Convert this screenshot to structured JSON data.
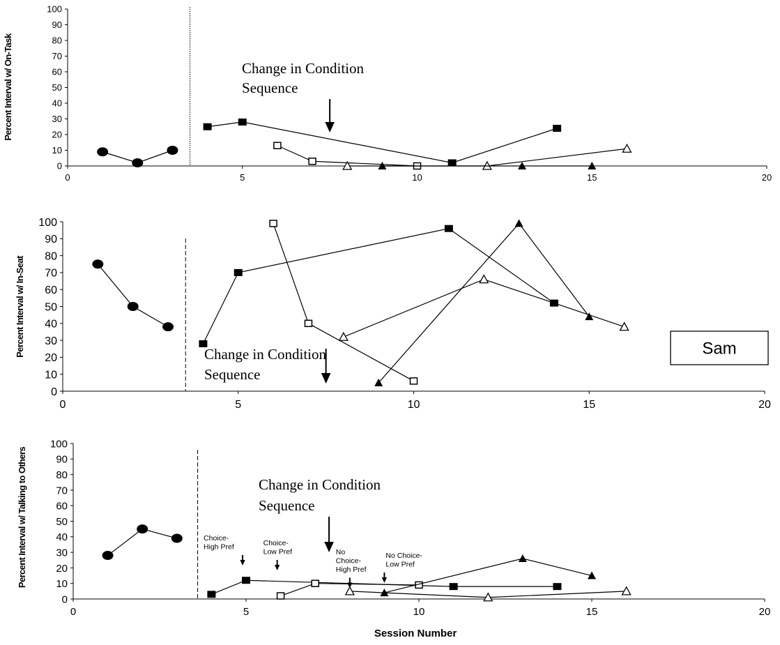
{
  "chart_data": [
    {
      "type": "line",
      "ylabel": "Percent Interval w/ On-Task",
      "xlabel": "",
      "xlim": [
        0,
        20
      ],
      "ylim": [
        0,
        100
      ],
      "x_ticks": [
        "0",
        "5",
        "10",
        "15",
        "20"
      ],
      "y_ticks": [
        "0",
        "10",
        "20",
        "30",
        "40",
        "50",
        "60",
        "70",
        "80",
        "90",
        "100"
      ],
      "phase_line_x": 3.5,
      "phase_line_style": "dotted",
      "annotation": {
        "text_lines": [
          "Change in Condition",
          "Sequence"
        ],
        "arrow_x": 7.5
      },
      "series": [
        {
          "marker": "filled-circle",
          "x": [
            1,
            2,
            3
          ],
          "y": [
            9,
            2,
            10
          ]
        },
        {
          "marker": "filled-square",
          "x": [
            4,
            5,
            11,
            14
          ],
          "y": [
            25,
            28,
            2,
            24
          ]
        },
        {
          "marker": "open-square",
          "x": [
            6,
            7,
            10
          ],
          "y": [
            13,
            3,
            0
          ]
        },
        {
          "marker": "open-triangle",
          "x": [
            8,
            12,
            16
          ],
          "y": [
            0,
            0,
            11
          ]
        },
        {
          "marker": "filled-triangle",
          "x": [
            9,
            13,
            15
          ],
          "y": [
            0,
            0,
            0
          ]
        }
      ]
    },
    {
      "type": "line",
      "ylabel": "Percent Interval w/ In-Seat",
      "xlabel": "",
      "xlim": [
        0,
        20
      ],
      "ylim": [
        0,
        100
      ],
      "x_ticks": [
        "0",
        "5",
        "10",
        "15",
        "20"
      ],
      "y_ticks": [
        "0",
        "10",
        "20",
        "30",
        "40",
        "50",
        "60",
        "70",
        "80",
        "90",
        "100"
      ],
      "phase_line_x": 3.5,
      "phase_line_style": "dashed",
      "annotation": {
        "text_lines": [
          "Change in Condition",
          "Sequence"
        ],
        "arrow_x": 7.5
      },
      "label_box": "Sam",
      "series": [
        {
          "marker": "filled-circle",
          "x": [
            1,
            2,
            3
          ],
          "y": [
            75,
            50,
            38
          ]
        },
        {
          "marker": "filled-square",
          "x": [
            4,
            5,
            11,
            14
          ],
          "y": [
            28,
            70,
            96,
            52
          ]
        },
        {
          "marker": "open-square",
          "x": [
            6,
            7,
            10
          ],
          "y": [
            99,
            40,
            6
          ]
        },
        {
          "marker": "open-triangle",
          "x": [
            8,
            12,
            16
          ],
          "y": [
            32,
            66,
            38
          ]
        },
        {
          "marker": "filled-triangle",
          "x": [
            9,
            13,
            15
          ],
          "y": [
            5,
            99,
            44
          ]
        }
      ]
    },
    {
      "type": "line",
      "ylabel": "Percent Interval w/ Talking to Others",
      "xlabel": "Session Number",
      "xlim": [
        0,
        20
      ],
      "ylim": [
        0,
        100
      ],
      "x_ticks": [
        "0",
        "5",
        "10",
        "15",
        "20"
      ],
      "y_ticks": [
        "0",
        "10",
        "20",
        "30",
        "40",
        "50",
        "60",
        "70",
        "80",
        "90",
        "100"
      ],
      "phase_line_x": 3.6,
      "phase_line_style": "dashed",
      "annotation": {
        "text_lines": [
          "Change in Condition",
          "Sequence"
        ],
        "arrow_x": 7.4
      },
      "condition_labels": [
        {
          "lines": [
            "Choice-",
            "High Pref"
          ],
          "x": 4.9
        },
        {
          "lines": [
            "Choice-",
            "Low Pref"
          ],
          "x": 5.9
        },
        {
          "lines": [
            "No",
            "Choice-",
            "High Pref"
          ],
          "x": 8.0
        },
        {
          "lines": [
            "No Choice-",
            "Low Pref"
          ],
          "x": 9.0
        }
      ],
      "series": [
        {
          "marker": "filled-circle",
          "x": [
            1,
            2,
            3
          ],
          "y": [
            28,
            45,
            39
          ]
        },
        {
          "marker": "filled-square",
          "x": [
            4,
            5,
            11,
            14
          ],
          "y": [
            3,
            12,
            8,
            8
          ]
        },
        {
          "marker": "open-square",
          "x": [
            6,
            7,
            10
          ],
          "y": [
            2,
            10,
            9
          ]
        },
        {
          "marker": "open-triangle",
          "x": [
            8,
            12,
            16
          ],
          "y": [
            5,
            1,
            5
          ]
        },
        {
          "marker": "filled-triangle",
          "x": [
            9,
            13,
            15
          ],
          "y": [
            4,
            26,
            15
          ]
        }
      ]
    }
  ]
}
